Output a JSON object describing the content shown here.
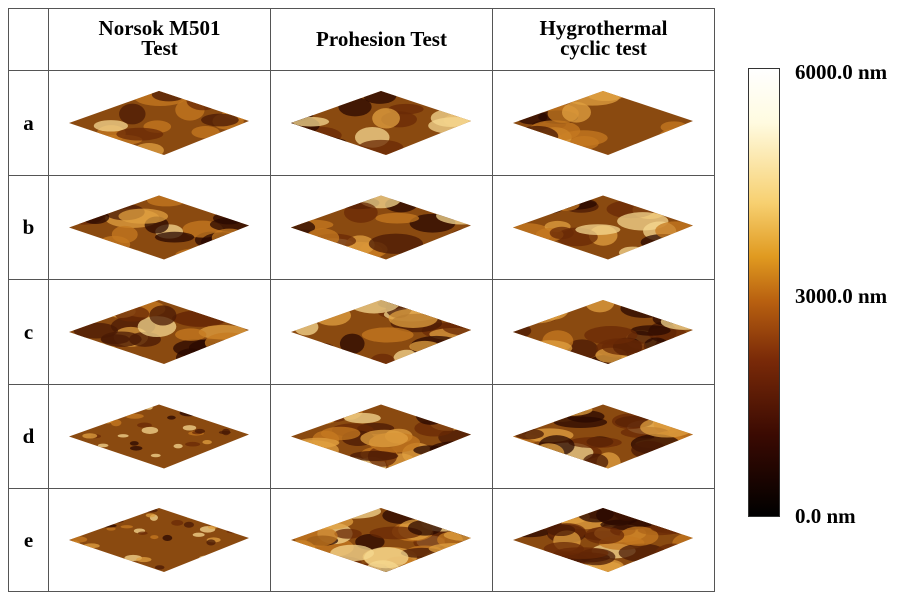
{
  "table": {
    "header": [
      "Norsok M501 Test",
      "Prohesion Test",
      "Hygrothermal cyclic test"
    ],
    "rows": [
      "a",
      "b",
      "c",
      "d",
      "e"
    ]
  },
  "colorbar": {
    "labels": [
      "6000.0 nm",
      "3000.0 nm",
      "0.0 nm"
    ]
  }
}
